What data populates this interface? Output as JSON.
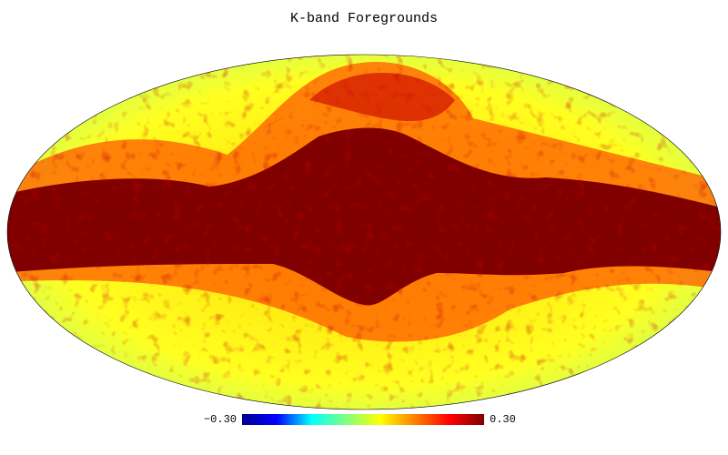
{
  "chart_data": {
    "type": "mollweide-map",
    "title": "K-band Foregrounds",
    "colorbar": {
      "lim": [
        -0.3,
        0.3
      ],
      "ticks": [
        {
          "value": -0.3,
          "label": "−0.30"
        },
        {
          "value": 0.3,
          "label": "0.30"
        }
      ],
      "colors": [
        "#00008f",
        "#0000ff",
        "#00ffff",
        "#80ff80",
        "#ffff00",
        "#ff8000",
        "#ff0000",
        "#800000"
      ]
    }
  }
}
